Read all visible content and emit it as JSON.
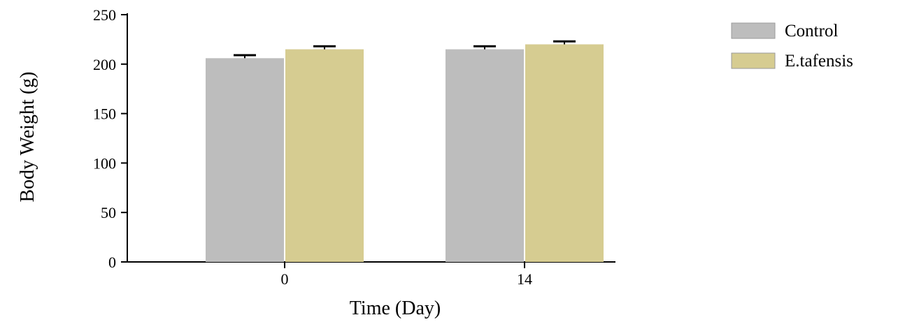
{
  "chart_data": {
    "type": "bar",
    "title": "",
    "xlabel": "Time (Day)",
    "ylabel": "Body Weight (g)",
    "categories": [
      "0",
      "14"
    ],
    "ylim": [
      0,
      250
    ],
    "yticks": [
      0,
      50,
      100,
      150,
      200,
      250
    ],
    "series": [
      {
        "name": "Control",
        "values": [
          206,
          215
        ],
        "errors": [
          3,
          3
        ],
        "color": "#bdbdbd"
      },
      {
        "name": "E.tafensis",
        "values": [
          215,
          220
        ],
        "errors": [
          3,
          3
        ],
        "color": "#d6cc91"
      }
    ],
    "legend_position": "top-right",
    "grid": false
  }
}
